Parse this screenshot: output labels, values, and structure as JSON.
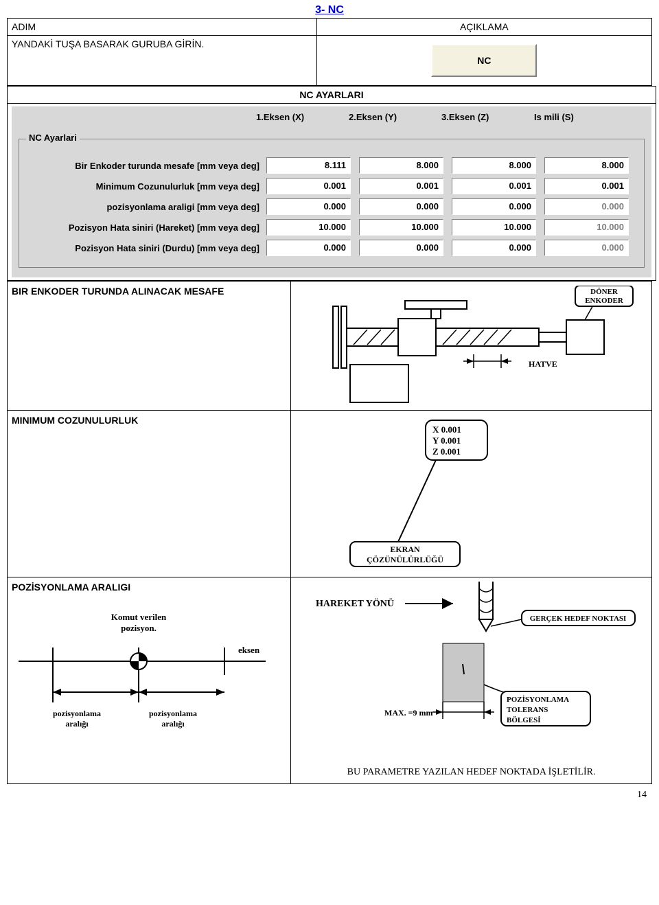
{
  "page_title": "3- NC",
  "header": {
    "left_label": "ADIM",
    "right_label": "AÇIKLAMA"
  },
  "step_row": {
    "left_text": "YANDAKİ TUŞA BASARAK GURUBA GİRİN.",
    "button_label": "NC"
  },
  "settings_block": {
    "title": "NC AYARLARI",
    "legend": "NC Ayarlari",
    "axis_headers": [
      "1.Eksen (X)",
      "2.Eksen (Y)",
      "3.Eksen (Z)",
      "Is mili (S)"
    ],
    "rows": [
      {
        "label": "Bir Enkoder turunda mesafe [mm veya deg]",
        "values": [
          "8.111",
          "8.000",
          "8.000",
          "8.000"
        ],
        "disabled": [
          false,
          false,
          false,
          false
        ]
      },
      {
        "label": "Minimum Cozunulurluk [mm veya deg]",
        "values": [
          "0.001",
          "0.001",
          "0.001",
          "0.001"
        ],
        "disabled": [
          false,
          false,
          false,
          false
        ]
      },
      {
        "label": "pozisyonlama araligi [mm veya deg]",
        "values": [
          "0.000",
          "0.000",
          "0.000",
          "0.000"
        ],
        "disabled": [
          false,
          false,
          false,
          true
        ]
      },
      {
        "label": "Pozisyon Hata siniri (Hareket) [mm veya deg]",
        "values": [
          "10.000",
          "10.000",
          "10.000",
          "10.000"
        ],
        "disabled": [
          false,
          false,
          false,
          true
        ]
      },
      {
        "label": "Pozisyon Hata siniri (Durdu) [mm veya deg]",
        "values": [
          "0.000",
          "0.000",
          "0.000",
          "0.000"
        ],
        "disabled": [
          false,
          false,
          false,
          true
        ]
      }
    ]
  },
  "sub_rows": {
    "r1": {
      "left": "BIR ENKODER TURUNDA ALINACAK MESAFE",
      "enc_label": "DÖNER\nENKODER",
      "hatve_label": "HATVE"
    },
    "r2": {
      "left": "MINIMUM COZUNULURLUK",
      "box_lines": [
        "X 0.001",
        "Y 0.001",
        "Z 0.001"
      ],
      "callout": "EKRAN\nÇÖZÜNÜLÜRLÜĞÜ"
    },
    "r3": {
      "left": "POZİSYONLAMA ARALIGI",
      "komut": "Komut verilen\npozisyon.",
      "eksen": "eksen",
      "pos_left": "pozisyonlama\naralığı",
      "pos_right": "pozisyonlama\naralığı",
      "hareket": "HAREKET YÖNÜ",
      "hedef": "GERÇEK HEDEF NOKTASI",
      "max": "MAX. =9 mm",
      "tol": "POZİSYONLAMA\nTOLERANS\nBÖLGESİ",
      "footer": "BU PARAMETRE YAZILAN HEDEF NOKTADA İŞLETİLİR."
    }
  },
  "page_number": "14"
}
